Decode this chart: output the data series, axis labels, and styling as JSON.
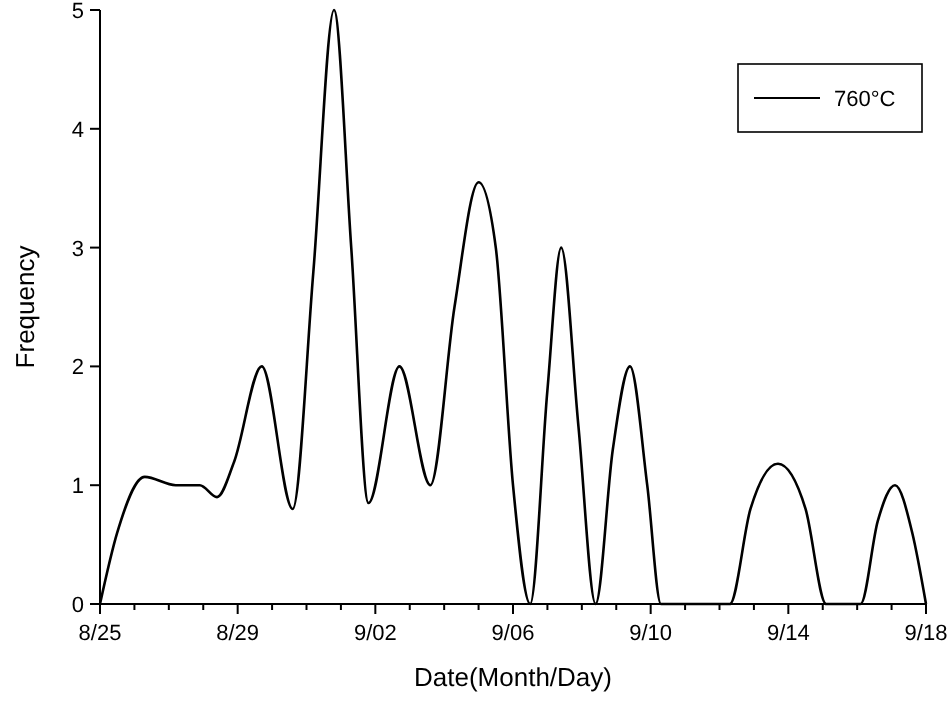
{
  "chart_data": {
    "type": "line",
    "xlabel": "Date(Month/Day)",
    "ylabel": "Frequency",
    "xlim": [
      "--08-25",
      "--09-18"
    ],
    "ylim": [
      0,
      5
    ],
    "yticks": [
      0,
      1,
      2,
      3,
      4,
      5
    ],
    "xticks": [
      {
        "value": "--08-25",
        "label": "8/25"
      },
      {
        "value": "--08-26",
        "label": null
      },
      {
        "value": "--08-27",
        "label": null
      },
      {
        "value": "--08-28",
        "label": null
      },
      {
        "value": "--08-29",
        "label": "8/29"
      },
      {
        "value": "--08-30",
        "label": null
      },
      {
        "value": "--08-31",
        "label": null
      },
      {
        "value": "--09-01",
        "label": null
      },
      {
        "value": "--09-02",
        "label": "9/02"
      },
      {
        "value": "--09-03",
        "label": null
      },
      {
        "value": "--09-04",
        "label": null
      },
      {
        "value": "--09-05",
        "label": null
      },
      {
        "value": "--09-06",
        "label": "9/06"
      },
      {
        "value": "--09-07",
        "label": null
      },
      {
        "value": "--09-08",
        "label": null
      },
      {
        "value": "--09-09",
        "label": null
      },
      {
        "value": "--09-10",
        "label": "9/10"
      },
      {
        "value": "--09-11",
        "label": null
      },
      {
        "value": "--09-12",
        "label": null
      },
      {
        "value": "--09-13",
        "label": null
      },
      {
        "value": "--09-14",
        "label": "9/14"
      },
      {
        "value": "--09-15",
        "label": null
      },
      {
        "value": "--09-16",
        "label": null
      },
      {
        "value": "--09-17",
        "label": null
      },
      {
        "value": "--09-18",
        "label": "9/18"
      }
    ],
    "legend": "top right",
    "marker": "none",
    "line_style": "solid",
    "series": [
      {
        "name": "760°C",
        "color": "#000000",
        "x": [
          "--08-25",
          "--08-25T12:00",
          "--08-26T07:12",
          "--08-27T04:48",
          "--08-27T21:36",
          "--08-28T09:36",
          "--08-28T21:36",
          "--08-29T16:48",
          "--08-30T14:24",
          "--08-31T04:48",
          "--08-31T19:12",
          "--09-01T07:12",
          "--09-01T19:12",
          "--09-02T16:48",
          "--09-03T14:24",
          "--09-04T07:12",
          "--09-05",
          "--09-05T12:00",
          "--09-06",
          "--09-06T12:00",
          "--09-07",
          "--09-07T09:36",
          "--09-07T21:36",
          "--09-08T09:36",
          "--09-08T21:36",
          "--09-09T09:36",
          "--09-09T21:36",
          "--09-10T07:12",
          "--09-12T07:12",
          "--09-12T21:36",
          "--09-13T16:48",
          "--09-14T12:00",
          "--09-15T02:24",
          "--09-16T02:24",
          "--09-16T14:24",
          "--09-17T02:24",
          "--09-17T14:24",
          "--09-18"
        ],
        "values": [
          0,
          0.6,
          1.07,
          1.0,
          1.0,
          0.9,
          1.2,
          2.0,
          0.8,
          2.8,
          5.0,
          3.0,
          0.85,
          2.0,
          1.0,
          2.5,
          3.55,
          3.0,
          1.0,
          0,
          1.8,
          3.0,
          1.5,
          0,
          1.3,
          2.0,
          1.0,
          0,
          0,
          0.8,
          1.18,
          0.8,
          0,
          0,
          0.7,
          1.0,
          0.6,
          0
        ]
      }
    ]
  }
}
